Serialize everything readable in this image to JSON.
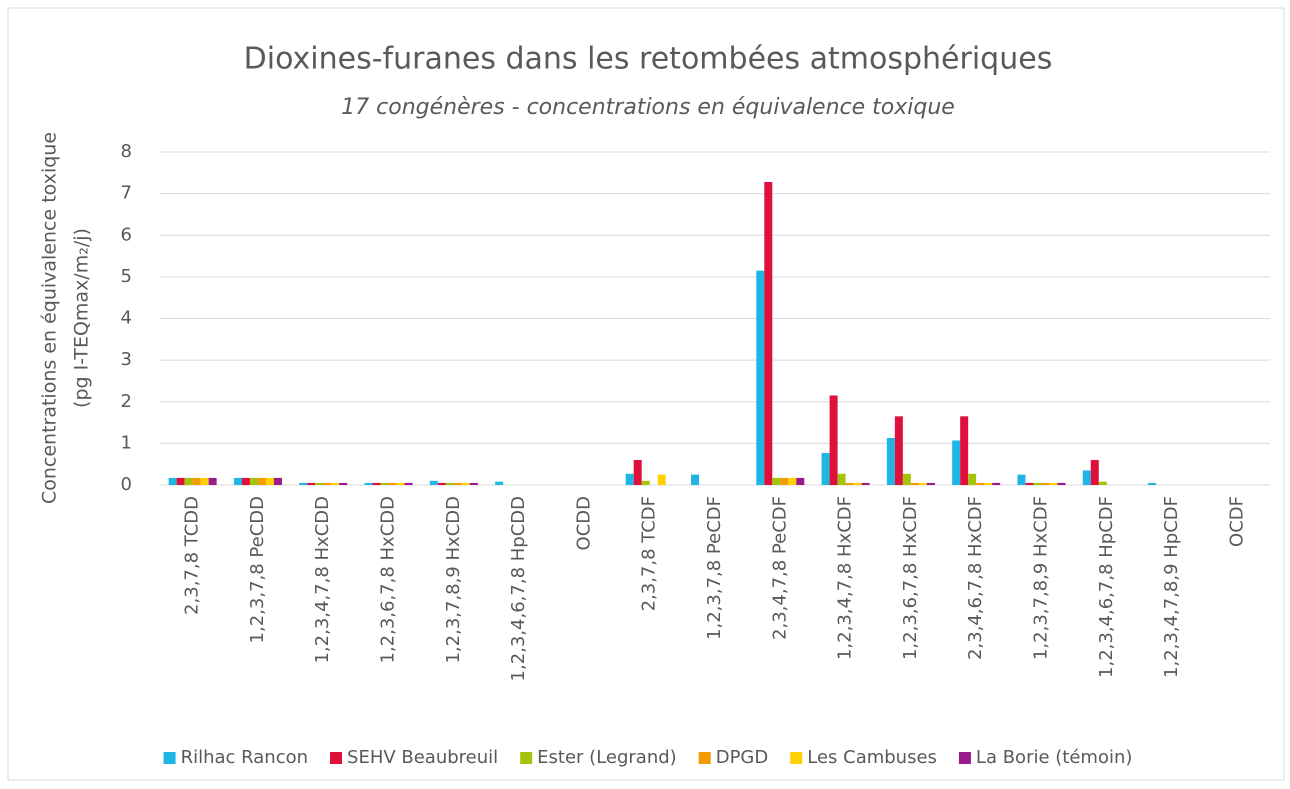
{
  "chart_data": {
    "type": "bar",
    "title": "Dioxines-furanes dans les retombées atmosphériques",
    "subtitle": "17 congénères - concentrations en équivalence toxique",
    "y_label": [
      "Concentrations en équivalence toxique",
      "(pg I-TEQmax/m₂/j)"
    ],
    "categories": [
      "2,3,7,8 TCDD",
      "1,2,3,7,8 PeCDD",
      "1,2,3,4,7,8 HxCDD",
      "1,2,3,6,7,8 HxCDD",
      "1,2,3,7,8,9 HxCDD",
      "1,2,3,4,6,7,8 HpCDD",
      "OCDD",
      "2,3,7,8 TCDF",
      "1,2,3,7,8 PeCDF",
      "2,3,4,7,8 PeCDF",
      "1,2,3,4,7,8 HxCDF",
      "1,2,3,6,7,8 HxCDF",
      "2,3,4,6,7,8 HxCDF",
      "1,2,3,7,8,9 HxCDF",
      "1,2,3,4,6,7,8 HpCDF",
      "1,2,3,4,7,8,9 HpCDF",
      "OCDF"
    ],
    "series": [
      {
        "name": "Rilhac Rancon",
        "color": "#1fb6e5",
        "values": [
          0.17,
          0.17,
          0.05,
          0.05,
          0.1,
          0.08,
          0,
          0.27,
          0.25,
          5.15,
          0.77,
          1.13,
          1.07,
          0.25,
          0.35,
          0.05,
          0
        ]
      },
      {
        "name": "SEHV Beaubreuil",
        "color": "#e0103c",
        "values": [
          0.17,
          0.17,
          0.05,
          0.05,
          0.05,
          0,
          0,
          0.6,
          0,
          7.28,
          2.15,
          1.65,
          1.65,
          0.05,
          0.6,
          0,
          0
        ]
      },
      {
        "name": "Ester (Legrand)",
        "color": "#a6c30b",
        "values": [
          0.17,
          0.17,
          0.05,
          0.05,
          0.05,
          0,
          0,
          0.1,
          0,
          0.17,
          0.27,
          0.27,
          0.27,
          0.05,
          0.08,
          0,
          0
        ]
      },
      {
        "name": "DPGD",
        "color": "#f39c00",
        "values": [
          0.17,
          0.17,
          0.05,
          0.05,
          0.05,
          0,
          0,
          0,
          0,
          0.17,
          0.05,
          0.05,
          0.05,
          0.05,
          0,
          0,
          0
        ]
      },
      {
        "name": "Les Cambuses",
        "color": "#ffd100",
        "values": [
          0.17,
          0.17,
          0.05,
          0.05,
          0.05,
          0,
          0,
          0.25,
          0,
          0.17,
          0.05,
          0.05,
          0.05,
          0.05,
          0,
          0,
          0
        ]
      },
      {
        "name": "La Borie (témoin)",
        "color": "#9b1b8c",
        "values": [
          0.17,
          0.17,
          0.05,
          0.05,
          0.05,
          0,
          0,
          0,
          0,
          0.17,
          0.05,
          0.05,
          0.05,
          0.05,
          0,
          0,
          0
        ]
      }
    ],
    "ylim": [
      0,
      8
    ],
    "yticks": [
      0,
      1,
      2,
      3,
      4,
      5,
      6,
      7,
      8
    ],
    "grid": true,
    "legend": "bottom"
  }
}
